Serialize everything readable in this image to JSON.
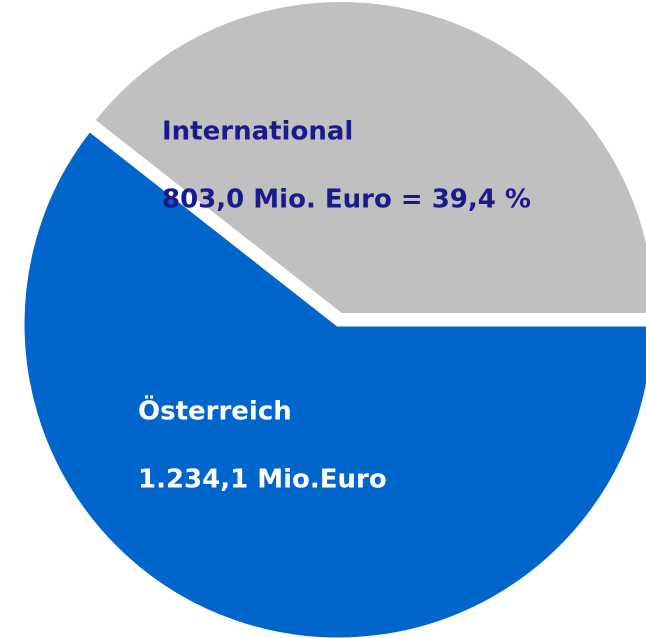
{
  "chart_data": {
    "type": "pie",
    "categories": [
      "International",
      "Österreich"
    ],
    "values": [
      803.0,
      1234.1
    ],
    "value_labels": [
      "803,0 Mio. Euro = 39,4 %",
      "1.234,1 Mio.Euro"
    ],
    "colors": [
      "#c0c0c0",
      "#0066cc"
    ],
    "label_colors": [
      "#1a1a8c",
      "#ffffff"
    ]
  }
}
